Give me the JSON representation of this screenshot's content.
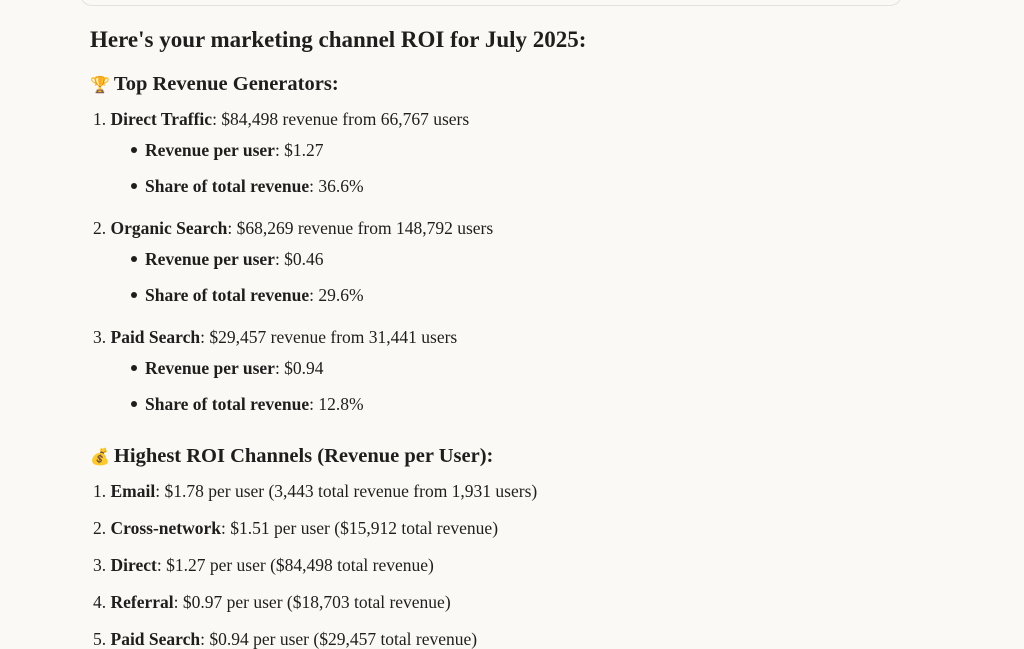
{
  "heading": "Here's your marketing channel ROI for July 2025:",
  "sections": [
    {
      "icon": "🏆",
      "title": "Top Revenue Generators:",
      "items": [
        {
          "marker": "1.",
          "label": "Direct Traffic",
          "text": ": $84,498 revenue from 66,767 users",
          "details": [
            {
              "label": "Revenue per user",
              "text": ": $1.27"
            },
            {
              "label": "Share of total revenue",
              "text": ": 36.6%"
            }
          ]
        },
        {
          "marker": "2.",
          "label": "Organic Search",
          "text": ": $68,269 revenue from 148,792 users",
          "details": [
            {
              "label": "Revenue per user",
              "text": ": $0.46"
            },
            {
              "label": "Share of total revenue",
              "text": ": 29.6%"
            }
          ]
        },
        {
          "marker": "3.",
          "label": "Paid Search",
          "text": ": $29,457 revenue from 31,441 users",
          "details": [
            {
              "label": "Revenue per user",
              "text": ": $0.94"
            },
            {
              "label": "Share of total revenue",
              "text": ": 12.8%"
            }
          ]
        }
      ]
    },
    {
      "icon": "💰",
      "title": "Highest ROI Channels (Revenue per User):",
      "items": [
        {
          "marker": "1.",
          "label": "Email",
          "text": ": $1.78 per user (3,443 total revenue from 1,931 users)"
        },
        {
          "marker": "2.",
          "label": "Cross-network",
          "text": ": $1.51 per user ($15,912 total revenue)"
        },
        {
          "marker": "3.",
          "label": "Direct",
          "text": ": $1.27 per user ($84,498 total revenue)"
        },
        {
          "marker": "4.",
          "label": "Referral",
          "text": ": $0.97 per user ($18,703 total revenue)"
        },
        {
          "marker": "5.",
          "label": "Paid Search",
          "text": ": $0.94 per user ($29,457 total revenue)"
        }
      ]
    }
  ]
}
